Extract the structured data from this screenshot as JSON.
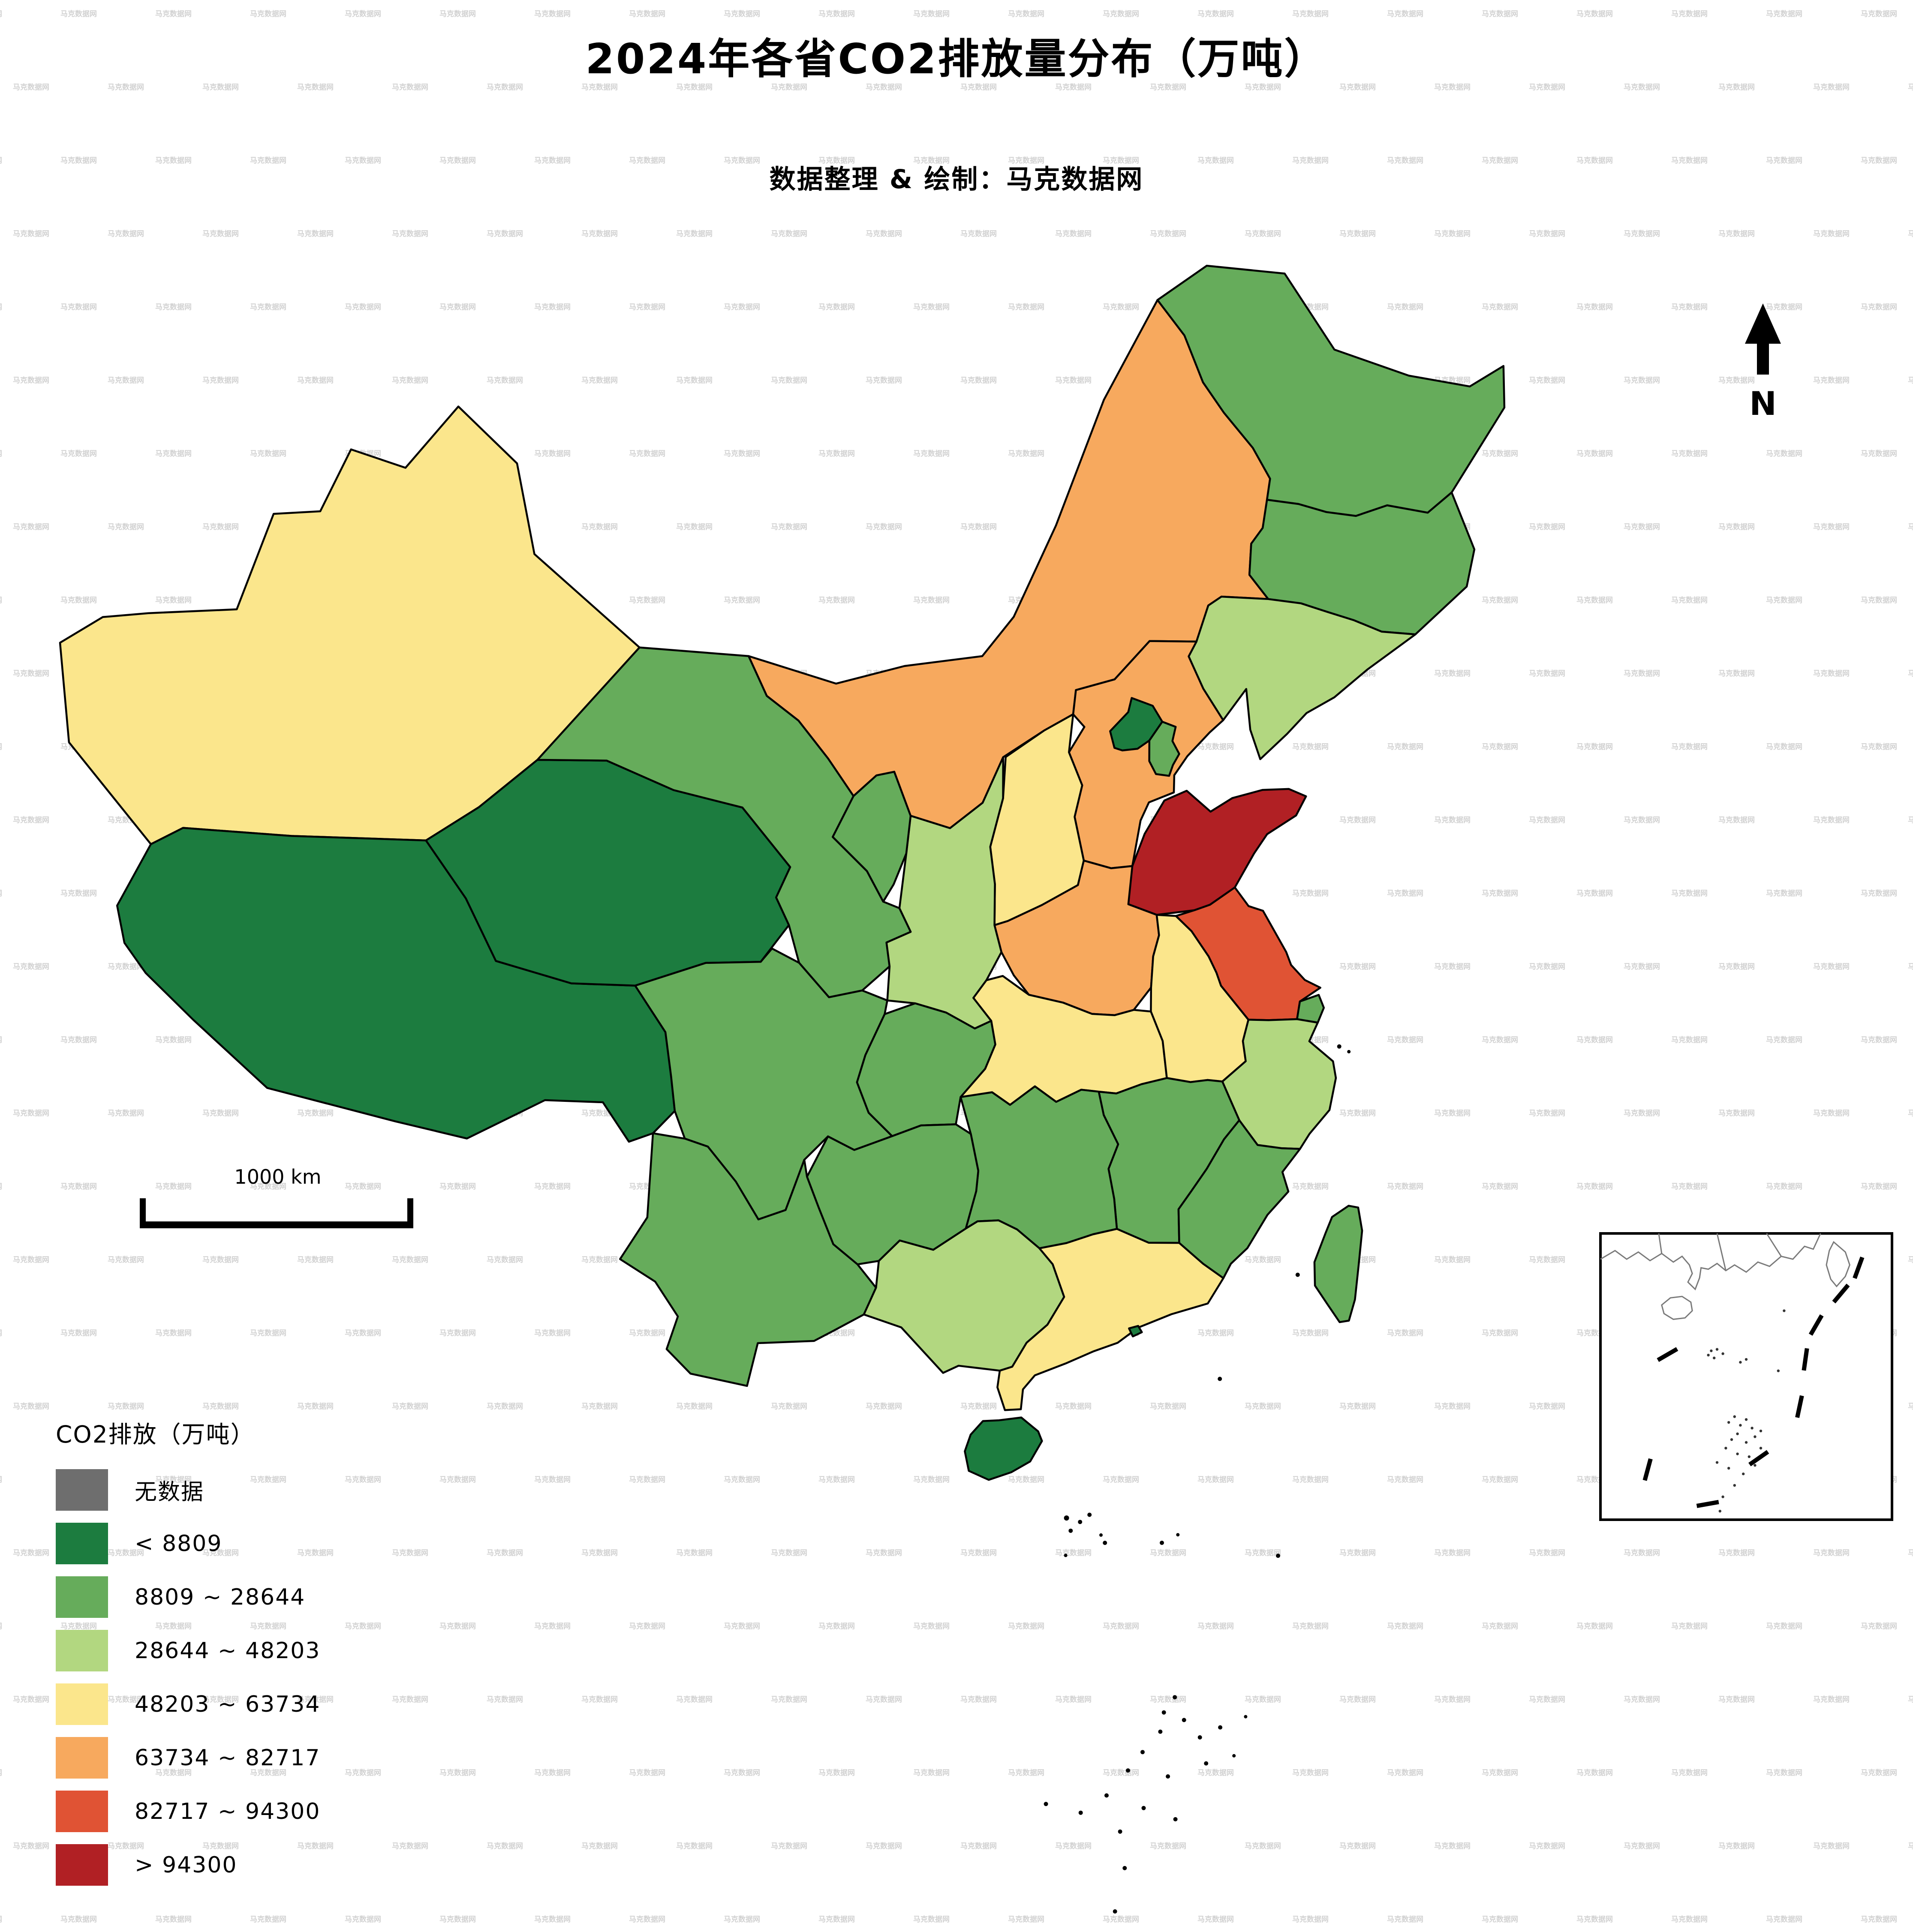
{
  "title": "2024年各省CO2排放量分布（万吨）",
  "subtitle": "数据整理 & 绘制：马克数据网",
  "watermark": {
    "text": "马克数据网"
  },
  "north_label": "N",
  "scale_bar": {
    "label": "1000 km"
  },
  "legend": {
    "title": "CO2排放（万吨）",
    "items": [
      {
        "key": "c0",
        "label": "无数据",
        "color": "#6E6E6E"
      },
      {
        "key": "c1",
        "label": "< 8809",
        "color": "#1C7C3F"
      },
      {
        "key": "c2",
        "label": "8809 ~ 28644",
        "color": "#66AC5B"
      },
      {
        "key": "c3",
        "label": "28644 ~ 48203",
        "color": "#B2D780"
      },
      {
        "key": "c4",
        "label": "48203 ~ 63734",
        "color": "#FBE68C"
      },
      {
        "key": "c5",
        "label": "63734 ~ 82717",
        "color": "#F7A95E"
      },
      {
        "key": "c6",
        "label": "82717 ~ 94300",
        "color": "#E05334"
      },
      {
        "key": "c7",
        "label": "> 94300",
        "color": "#B12024"
      }
    ]
  },
  "chart_data": {
    "type": "choropleth",
    "title": "2024年各省CO2排放量分布（万吨）",
    "unit": "万吨",
    "legend_position": "bottom-left",
    "classes": [
      "无数据",
      "< 8809",
      "8809 ~ 28644",
      "28644 ~ 48203",
      "48203 ~ 63734",
      "63734 ~ 82717",
      "82717 ~ 94300",
      "> 94300"
    ],
    "regions": [
      {
        "id": "xinjiang",
        "name": "新疆",
        "class_key": "c4",
        "class": "48203 ~ 63734"
      },
      {
        "id": "xizang",
        "name": "西藏",
        "class_key": "c1",
        "class": "< 8809"
      },
      {
        "id": "qinghai",
        "name": "青海",
        "class_key": "c1",
        "class": "< 8809"
      },
      {
        "id": "gansu",
        "name": "甘肃",
        "class_key": "c2",
        "class": "8809 ~ 28644"
      },
      {
        "id": "neimenggu",
        "name": "内蒙古",
        "class_key": "c5",
        "class": "63734 ~ 82717"
      },
      {
        "id": "heilongjiang",
        "name": "黑龙江",
        "class_key": "c2",
        "class": "8809 ~ 28644"
      },
      {
        "id": "jilin",
        "name": "吉林",
        "class_key": "c2",
        "class": "8809 ~ 28644"
      },
      {
        "id": "liaoning",
        "name": "辽宁",
        "class_key": "c3",
        "class": "28644 ~ 48203"
      },
      {
        "id": "beijing",
        "name": "北京",
        "class_key": "c1",
        "class": "< 8809"
      },
      {
        "id": "tianjin",
        "name": "天津",
        "class_key": "c2",
        "class": "8809 ~ 28644"
      },
      {
        "id": "hebei",
        "name": "河北",
        "class_key": "c5",
        "class": "63734 ~ 82717"
      },
      {
        "id": "shanxi",
        "name": "山西",
        "class_key": "c4",
        "class": "48203 ~ 63734"
      },
      {
        "id": "shandong",
        "name": "山东",
        "class_key": "c7",
        "class": "> 94300"
      },
      {
        "id": "henan",
        "name": "河南",
        "class_key": "c5",
        "class": "63734 ~ 82717"
      },
      {
        "id": "jiangsu",
        "name": "江苏",
        "class_key": "c6",
        "class": "82717 ~ 94300"
      },
      {
        "id": "anhui",
        "name": "安徽",
        "class_key": "c4",
        "class": "48203 ~ 63734"
      },
      {
        "id": "shanghai",
        "name": "上海",
        "class_key": "c2",
        "class": "8809 ~ 28644"
      },
      {
        "id": "zhejiang",
        "name": "浙江",
        "class_key": "c3",
        "class": "28644 ~ 48203"
      },
      {
        "id": "hubei",
        "name": "湖北",
        "class_key": "c4",
        "class": "48203 ~ 63734"
      },
      {
        "id": "chongqing",
        "name": "重庆",
        "class_key": "c2",
        "class": "8809 ~ 28644"
      },
      {
        "id": "sichuan",
        "name": "四川",
        "class_key": "c2",
        "class": "8809 ~ 28644"
      },
      {
        "id": "shaanxi",
        "name": "陕西",
        "class_key": "c3",
        "class": "28644 ~ 48203"
      },
      {
        "id": "ningxia",
        "name": "宁夏",
        "class_key": "c2",
        "class": "8809 ~ 28644"
      },
      {
        "id": "hunan",
        "name": "湖南",
        "class_key": "c2",
        "class": "8809 ~ 28644"
      },
      {
        "id": "jiangxi",
        "name": "江西",
        "class_key": "c2",
        "class": "8809 ~ 28644"
      },
      {
        "id": "fujian",
        "name": "福建",
        "class_key": "c2",
        "class": "8809 ~ 28644"
      },
      {
        "id": "guangdong",
        "name": "广东",
        "class_key": "c4",
        "class": "48203 ~ 63734"
      },
      {
        "id": "guangxi",
        "name": "广西",
        "class_key": "c3",
        "class": "28644 ~ 48203"
      },
      {
        "id": "guizhou",
        "name": "贵州",
        "class_key": "c2",
        "class": "8809 ~ 28644"
      },
      {
        "id": "yunnan",
        "name": "云南",
        "class_key": "c2",
        "class": "8809 ~ 28644"
      },
      {
        "id": "hainan",
        "name": "海南",
        "class_key": "c1",
        "class": "< 8809"
      },
      {
        "id": "taiwan",
        "name": "台湾",
        "class_key": "c2",
        "class": "8809 ~ 28644"
      },
      {
        "id": "xianggang",
        "name": "香港",
        "class_key": "c1",
        "class": "< 8809"
      }
    ]
  }
}
